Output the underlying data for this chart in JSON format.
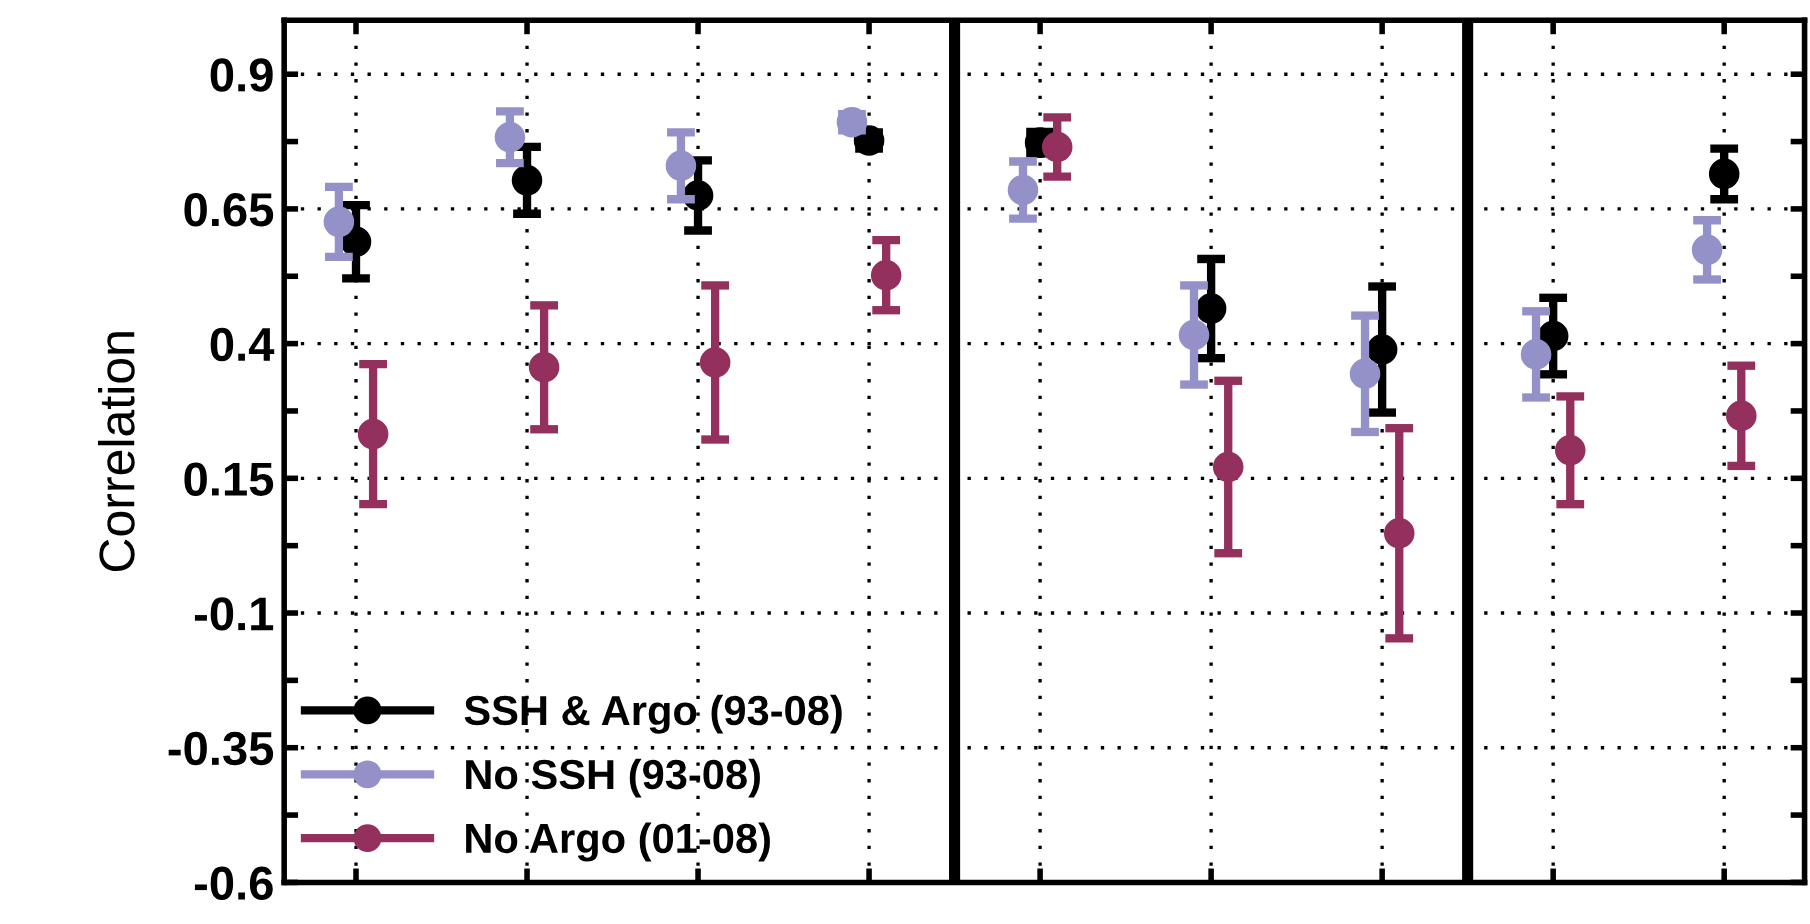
{
  "chart_data": {
    "type": "scatter",
    "ylabel": "Correlation",
    "categories": [
      null,
      null,
      null,
      null,
      null,
      null,
      null,
      null,
      null
    ],
    "ylim": [
      -0.6,
      1.0
    ],
    "yticks": [
      -0.6,
      -0.35,
      -0.1,
      0.15,
      0.4,
      0.65,
      0.9
    ],
    "grid": true,
    "legend": "bottom left",
    "marker": "circle",
    "tick_labels": "y",
    "series": [
      {
        "name": "SSH & Argo (93-08)",
        "color": "#000000",
        "values": [
          0.589,
          0.703,
          0.675,
          0.777,
          0.773,
          0.465,
          0.389,
          0.414,
          0.715
        ],
        "errors": [
          0.068,
          0.062,
          0.065,
          0.015,
          0.02,
          0.092,
          0.117,
          0.071,
          0.047
        ]
      },
      {
        "name": "No SSH (93-08)",
        "color": "#9491c9",
        "values": [
          0.626,
          0.783,
          0.73,
          0.811,
          0.685,
          0.416,
          0.344,
          0.38,
          0.574
        ],
        "errors": [
          0.065,
          0.048,
          0.062,
          0.015,
          0.053,
          0.092,
          0.108,
          0.08,
          0.055
        ]
      },
      {
        "name": "No Argo (01-08)",
        "color": "#94305e",
        "values": [
          0.232,
          0.356,
          0.365,
          0.527,
          0.765,
          0.171,
          0.048,
          0.202,
          0.266
        ],
        "errors": [
          0.13,
          0.115,
          0.143,
          0.065,
          0.055,
          0.16,
          0.195,
          0.1,
          0.093
        ]
      }
    ]
  }
}
